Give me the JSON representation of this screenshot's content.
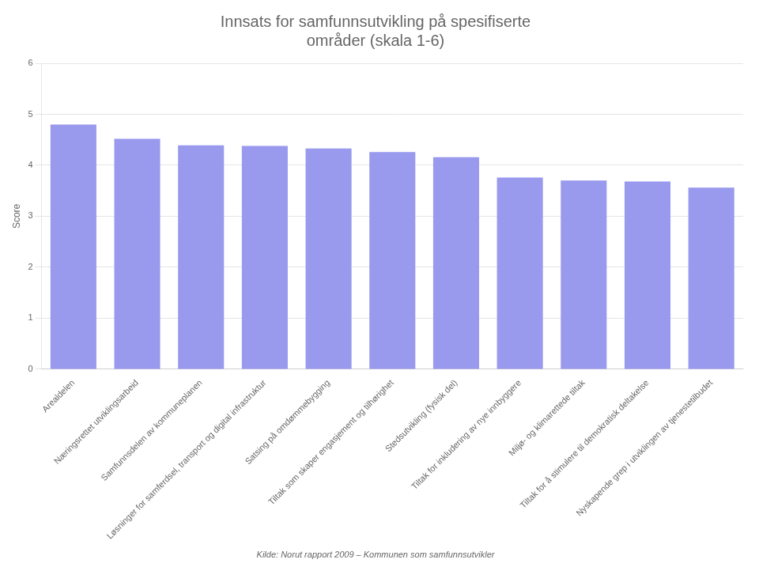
{
  "chart_data": {
    "type": "bar",
    "title": "Innsats for samfunnsutvikling på spesifiserte\nområder (skala 1-6)",
    "ylabel": "Score",
    "categories": [
      "Arealdelen",
      "Næringsrettet utviklingsarbeid",
      "Samfunnsdelen av kommuneplanen",
      "Løsninger for samferdsel, transport og digital infrastruktur",
      "Satsing på omdømmebygging",
      "Tiltak som skaper engasjement og tilhørighet",
      "Stedsutvikling (fysisk del)",
      "Tiltak for inkludering av nye innbyggere",
      "Miljø- og klimarettede tiltak",
      "Tiltak for å stimulere til demokratisk deltakelse",
      "Nyskapende grep i utviklingen av tjenestetilbudet"
    ],
    "values": [
      4.8,
      4.52,
      4.39,
      4.38,
      4.33,
      4.26,
      4.16,
      3.76,
      3.7,
      3.68,
      3.56
    ],
    "color": "#9999ee",
    "ylim": [
      0,
      6
    ],
    "yticks": [
      0,
      1,
      2,
      3,
      4,
      5,
      6
    ],
    "grid": true,
    "annotations": [
      "Kilde: Norut rapport 2009 – Kommunen som samfunnsutvikler"
    ]
  }
}
